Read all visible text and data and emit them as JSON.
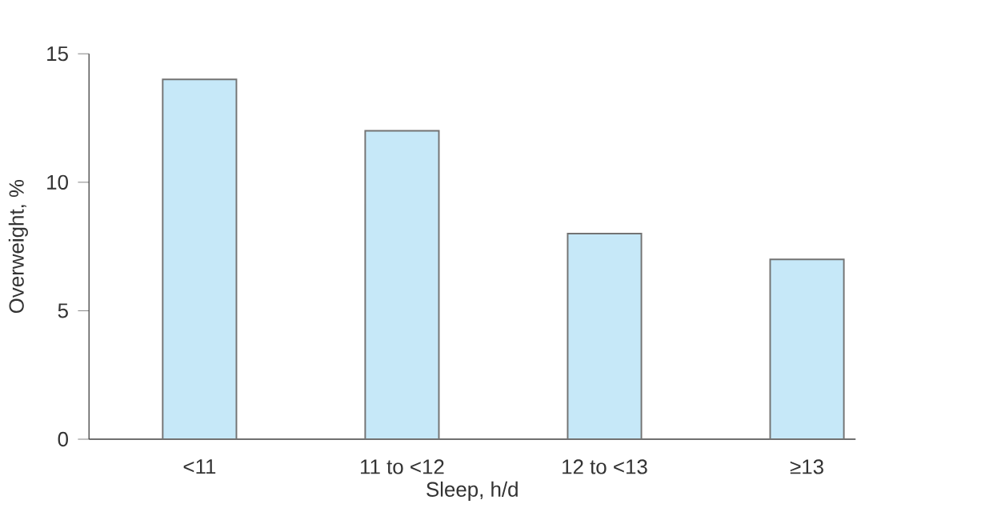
{
  "chart_data": {
    "type": "bar",
    "xlabel": "Sleep, h/d",
    "ylabel": "Overweight, %",
    "categories": [
      "<11",
      "11 to <12",
      "12 to <13",
      "≥13"
    ],
    "values": [
      14,
      12,
      8,
      7
    ],
    "color": "#c6e8f8",
    "ylim": [
      0,
      15
    ],
    "yticks": [
      0,
      5,
      10,
      15
    ]
  }
}
